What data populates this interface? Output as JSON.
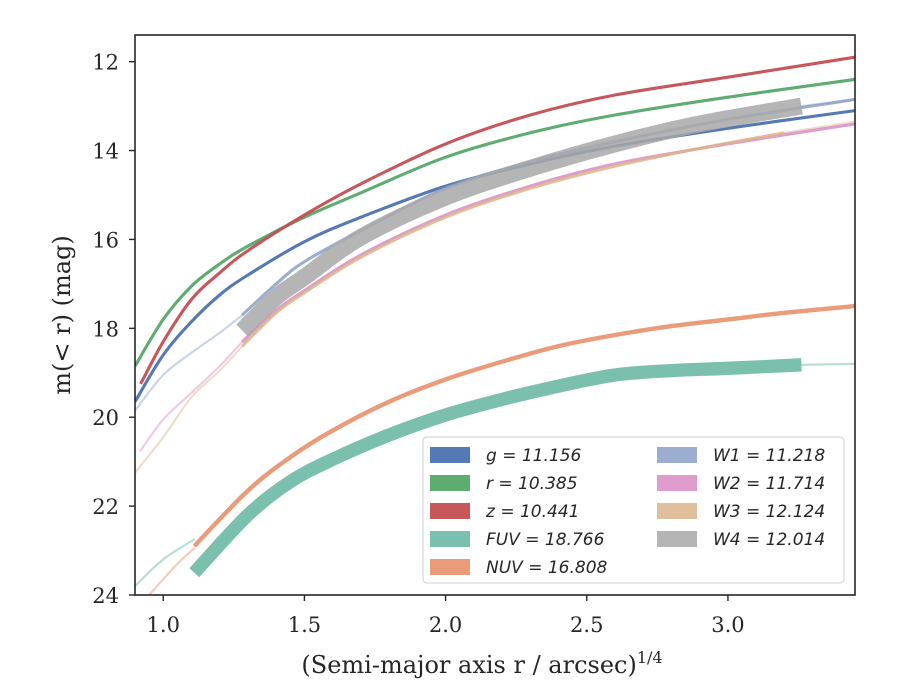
{
  "chart_data": {
    "type": "line",
    "title": "",
    "xlabel": "(Semi-major axis r / arcsec)",
    "xlabel_exponent": "1/4",
    "ylabel": "m(< r) (mag)",
    "xlim": [
      0.9,
      3.45
    ],
    "ylim": [
      24,
      11.4
    ],
    "y_inverted": true,
    "xticks": [
      1.0,
      1.5,
      2.0,
      2.5,
      3.0
    ],
    "xtick_labels": [
      "1.0",
      "1.5",
      "2.0",
      "2.5",
      "3.0"
    ],
    "yticks": [
      12,
      14,
      16,
      18,
      20,
      22,
      24
    ],
    "ytick_labels": [
      "12",
      "14",
      "16",
      "18",
      "20",
      "22",
      "24"
    ],
    "grid": false,
    "legend_location": "lower-right",
    "legend_columns": 2,
    "series": [
      {
        "name": "g = 11.156",
        "color": "#4c72b0",
        "width_mag": 0.07,
        "alpha": 0.95,
        "x": [
          0.9,
          1.0,
          1.1,
          1.2,
          1.3,
          1.5,
          1.7,
          2.0,
          2.3,
          2.6,
          3.0,
          3.45
        ],
        "y": [
          19.65,
          18.6,
          17.85,
          17.25,
          16.8,
          16.05,
          15.5,
          14.8,
          14.3,
          13.9,
          13.5,
          13.1
        ]
      },
      {
        "name": "r = 10.385",
        "color": "#55a868",
        "width_mag": 0.07,
        "alpha": 0.95,
        "x": [
          0.9,
          1.0,
          1.1,
          1.2,
          1.3,
          1.5,
          1.7,
          2.0,
          2.3,
          2.6,
          3.0,
          3.45
        ],
        "y": [
          18.85,
          17.8,
          17.05,
          16.55,
          16.15,
          15.5,
          14.95,
          14.15,
          13.6,
          13.2,
          12.8,
          12.4
        ]
      },
      {
        "name": "z = 10.441",
        "color": "#c44e52",
        "width_mag": 0.07,
        "alpha": 0.95,
        "x": [
          0.92,
          1.0,
          1.1,
          1.2,
          1.3,
          1.5,
          1.7,
          2.0,
          2.3,
          2.6,
          3.0,
          3.45
        ],
        "y": [
          19.25,
          18.3,
          17.35,
          16.75,
          16.25,
          15.45,
          14.75,
          13.85,
          13.2,
          12.75,
          12.35,
          11.9
        ]
      },
      {
        "name": "FUV = 18.766",
        "color": "#64b5a0",
        "width_mag": 0.3,
        "alpha": 0.85,
        "x": [
          1.11,
          1.3,
          1.45,
          1.6,
          1.8,
          2.0,
          2.2,
          2.4,
          2.6,
          2.8,
          3.0,
          3.26
        ],
        "y": [
          23.5,
          22.2,
          21.45,
          20.95,
          20.4,
          19.95,
          19.6,
          19.3,
          19.05,
          18.95,
          18.9,
          18.82
        ]
      },
      {
        "name": "NUV = 16.808",
        "color": "#e8906a",
        "width_mag": 0.1,
        "alpha": 0.9,
        "x": [
          1.11,
          1.3,
          1.45,
          1.6,
          1.8,
          2.0,
          2.2,
          2.4,
          2.6,
          2.8,
          3.0,
          3.2,
          3.45
        ],
        "y": [
          22.9,
          21.65,
          20.9,
          20.3,
          19.65,
          19.15,
          18.75,
          18.4,
          18.15,
          17.95,
          17.8,
          17.65,
          17.5
        ]
      },
      {
        "name": "W1 = 11.218",
        "color": "#8c9fc8",
        "width_mag": 0.07,
        "alpha": 0.85,
        "x": [
          1.28,
          1.4,
          1.5,
          1.7,
          2.0,
          2.3,
          2.6,
          3.0,
          3.45
        ],
        "y": [
          17.7,
          17.0,
          16.5,
          15.8,
          14.85,
          14.25,
          13.8,
          13.3,
          12.85
        ]
      },
      {
        "name": "W2 = 11.714",
        "color": "#da8bc3",
        "width_mag": 0.07,
        "alpha": 0.85,
        "x": [
          1.28,
          1.4,
          1.5,
          1.7,
          2.0,
          2.3,
          2.6,
          3.0,
          3.45
        ],
        "y": [
          18.3,
          17.6,
          17.15,
          16.35,
          15.45,
          14.8,
          14.3,
          13.85,
          13.4
        ]
      },
      {
        "name": "W3 = 12.124",
        "color": "#d9b48b",
        "width_mag": 0.07,
        "alpha": 0.85,
        "x": [
          1.28,
          1.4,
          1.5,
          1.7,
          2.0,
          2.3,
          2.6,
          2.9,
          3.2
        ],
        "y": [
          18.4,
          17.65,
          17.2,
          16.4,
          15.5,
          14.85,
          14.35,
          13.95,
          13.6
        ]
      },
      {
        "name": "W4 = 12.014",
        "color": "#a8a8a8",
        "width_mag": 0.38,
        "alpha": 0.85,
        "x": [
          1.28,
          1.4,
          1.5,
          1.7,
          2.0,
          2.3,
          2.6,
          2.9,
          3.26
        ],
        "y": [
          18.05,
          17.3,
          16.85,
          15.95,
          15.05,
          14.4,
          13.85,
          13.4,
          13.0
        ]
      }
    ],
    "faint_extensions": [
      {
        "of": "FUV = 18.766",
        "color": "#64b5a0",
        "x": [
          0.9,
          1.0,
          1.11
        ],
        "y": [
          23.8,
          23.2,
          22.75
        ]
      },
      {
        "of": "FUV = 18.766",
        "color": "#64b5a0",
        "x": [
          3.26,
          3.45
        ],
        "y": [
          18.82,
          18.8
        ]
      },
      {
        "of": "NUV = 16.808",
        "color": "#e8906a",
        "x": [
          0.95,
          1.05,
          1.11
        ],
        "y": [
          24.0,
          23.3,
          22.95
        ]
      },
      {
        "of": "W1 = 11.218",
        "color": "#8c9fc8",
        "x": [
          0.9,
          1.0,
          1.1,
          1.2,
          1.28
        ],
        "y": [
          19.85,
          19.05,
          18.55,
          18.1,
          17.7
        ]
      },
      {
        "of": "W2 = 11.714",
        "color": "#da8bc3",
        "x": [
          0.92,
          1.0,
          1.1,
          1.2,
          1.28
        ],
        "y": [
          20.75,
          20.05,
          19.45,
          18.85,
          18.3
        ]
      },
      {
        "of": "W3 = 12.124",
        "color": "#d9b48b",
        "x": [
          0.9,
          1.0,
          1.1,
          1.2,
          1.28
        ],
        "y": [
          21.25,
          20.45,
          19.55,
          18.95,
          18.4
        ]
      },
      {
        "of": "W3 = 12.124",
        "color": "#d9b48b",
        "x": [
          3.2,
          3.45
        ],
        "y": [
          13.6,
          13.35
        ]
      },
      {
        "of": "W4 = 12.014",
        "color": "#a8a8a8",
        "x": [
          3.26,
          3.45
        ],
        "y": [
          13.0,
          12.85
        ]
      }
    ]
  }
}
